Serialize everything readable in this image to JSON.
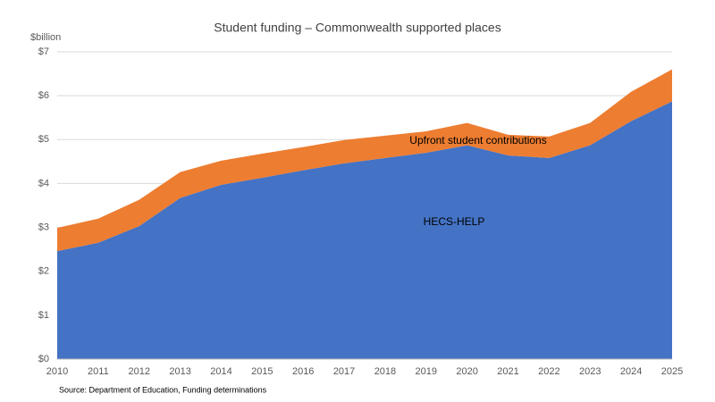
{
  "chart_data": {
    "type": "stacked_area",
    "title": "Student funding – Commonwealth supported places",
    "y_axis_label": "$billion",
    "source": "Source: Department of Education, Funding determinations",
    "x": [
      2010,
      2011,
      2012,
      2013,
      2014,
      2015,
      2016,
      2017,
      2018,
      2019,
      2020,
      2021,
      2022,
      2023,
      2024,
      2025
    ],
    "xlim": [
      2010,
      2025
    ],
    "xticks": [
      2010,
      2011,
      2012,
      2013,
      2014,
      2015,
      2016,
      2017,
      2018,
      2019,
      2020,
      2021,
      2022,
      2023,
      2024,
      2025
    ],
    "ylim": [
      0,
      7
    ],
    "yticks": [
      {
        "value": 0,
        "label": "$0"
      },
      {
        "value": 1,
        "label": "$1"
      },
      {
        "value": 2,
        "label": "$2"
      },
      {
        "value": 3,
        "label": "$3"
      },
      {
        "value": 4,
        "label": "$4"
      },
      {
        "value": 5,
        "label": "$5"
      },
      {
        "value": 6,
        "label": "$6"
      },
      {
        "value": 7,
        "label": "$7"
      }
    ],
    "grid": true,
    "series": [
      {
        "name": "HECS-HELP",
        "color": "#4472c4",
        "values": [
          2.46,
          2.65,
          3.03,
          3.67,
          3.97,
          4.13,
          4.3,
          4.46,
          4.58,
          4.7,
          4.87,
          4.64,
          4.58,
          4.87,
          5.42,
          5.87
        ]
      },
      {
        "name": "Upfront student contributions",
        "color": "#ed7d31",
        "values": [
          0.53,
          0.55,
          0.6,
          0.59,
          0.55,
          0.55,
          0.53,
          0.53,
          0.51,
          0.49,
          0.51,
          0.47,
          0.49,
          0.51,
          0.67,
          0.73
        ]
      }
    ]
  }
}
